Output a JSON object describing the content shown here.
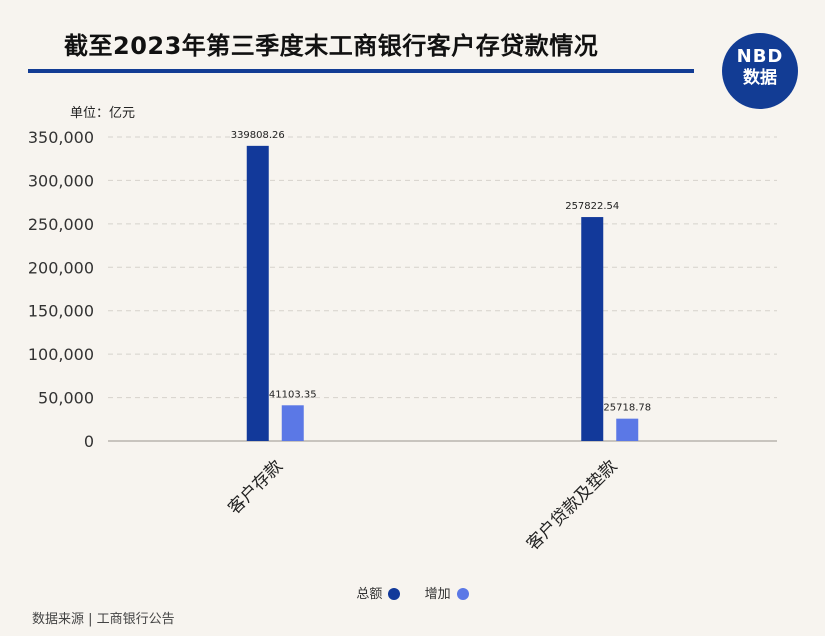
{
  "header": {
    "title": "截至2023年第三季度末工商银行客户存贷款情况",
    "badge_line1": "NBD",
    "badge_line2": "数据"
  },
  "source": "数据来源 | 工商银行公告",
  "colors": {
    "series_total": "#12399a",
    "series_increase": "#5b78e6",
    "title_bar": "#123c94"
  },
  "chart_data": {
    "type": "bar",
    "unit_label": "单位：亿元",
    "categories": [
      "客户存款",
      "客户贷款及垫款"
    ],
    "series": [
      {
        "name": "总额",
        "values": [
          339808.26,
          257822.54
        ],
        "labels": [
          "339808.26",
          "257822.54"
        ]
      },
      {
        "name": "增加",
        "values": [
          41103.35,
          25718.78
        ],
        "labels": [
          "41103.35",
          "25718.78"
        ]
      }
    ],
    "yticks": [
      "0",
      "50,000",
      "100,000",
      "150,000",
      "200,000",
      "250,000",
      "300,000",
      "350,000"
    ],
    "ylim": [
      0,
      350000
    ],
    "grid": true,
    "legend_position": "bottom"
  }
}
